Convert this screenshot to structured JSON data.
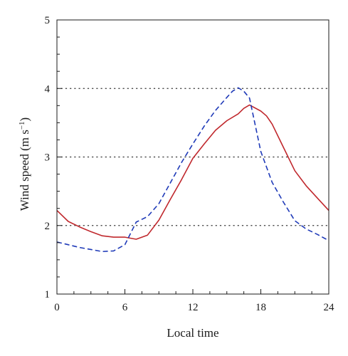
{
  "chart_data": {
    "type": "line",
    "xlabel": "Local time",
    "ylabel": "Wind speed (m s",
    "ylabel_sup": "−1",
    "ylabel_close": ")",
    "xlim": [
      0,
      24
    ],
    "ylim": [
      1,
      5
    ],
    "x_ticks": [
      0,
      6,
      12,
      18,
      24
    ],
    "y_ticks": [
      1,
      2,
      3,
      4,
      5
    ],
    "x_minor_step": 1.5,
    "y_minor_step": 0.25,
    "grid": {
      "style": "dotted",
      "y_values": [
        2,
        3,
        4
      ]
    },
    "series": [
      {
        "style": "solid",
        "color": "#c0282d",
        "points": [
          [
            0,
            2.22
          ],
          [
            1,
            2.06
          ],
          [
            2,
            1.98
          ],
          [
            3,
            1.91
          ],
          [
            4,
            1.85
          ],
          [
            5,
            1.83
          ],
          [
            6,
            1.83
          ],
          [
            7,
            1.8
          ],
          [
            8,
            1.86
          ],
          [
            9,
            2.08
          ],
          [
            10,
            2.38
          ],
          [
            11,
            2.67
          ],
          [
            12,
            2.98
          ],
          [
            13,
            3.19
          ],
          [
            14,
            3.39
          ],
          [
            15,
            3.53
          ],
          [
            16,
            3.63
          ],
          [
            16.5,
            3.71
          ],
          [
            17,
            3.76
          ],
          [
            18,
            3.67
          ],
          [
            18.5,
            3.6
          ],
          [
            19,
            3.48
          ],
          [
            20,
            3.14
          ],
          [
            21,
            2.8
          ],
          [
            22,
            2.58
          ],
          [
            23,
            2.4
          ],
          [
            24,
            2.22
          ]
        ]
      },
      {
        "style": "dashed",
        "color": "#1f3ab8",
        "points": [
          [
            0,
            1.76
          ],
          [
            1,
            1.72
          ],
          [
            2,
            1.68
          ],
          [
            3,
            1.65
          ],
          [
            4,
            1.62
          ],
          [
            5,
            1.63
          ],
          [
            6,
            1.72
          ],
          [
            7,
            2.05
          ],
          [
            8,
            2.13
          ],
          [
            9,
            2.32
          ],
          [
            10,
            2.62
          ],
          [
            11,
            2.92
          ],
          [
            12,
            3.19
          ],
          [
            13,
            3.45
          ],
          [
            14,
            3.68
          ],
          [
            15,
            3.87
          ],
          [
            15.5,
            3.96
          ],
          [
            16,
            4.01
          ],
          [
            16.5,
            3.96
          ],
          [
            17,
            3.86
          ],
          [
            18,
            3.08
          ],
          [
            19,
            2.63
          ],
          [
            20,
            2.34
          ],
          [
            21,
            2.07
          ],
          [
            22,
            1.95
          ],
          [
            23,
            1.87
          ],
          [
            24,
            1.78
          ]
        ]
      }
    ]
  }
}
